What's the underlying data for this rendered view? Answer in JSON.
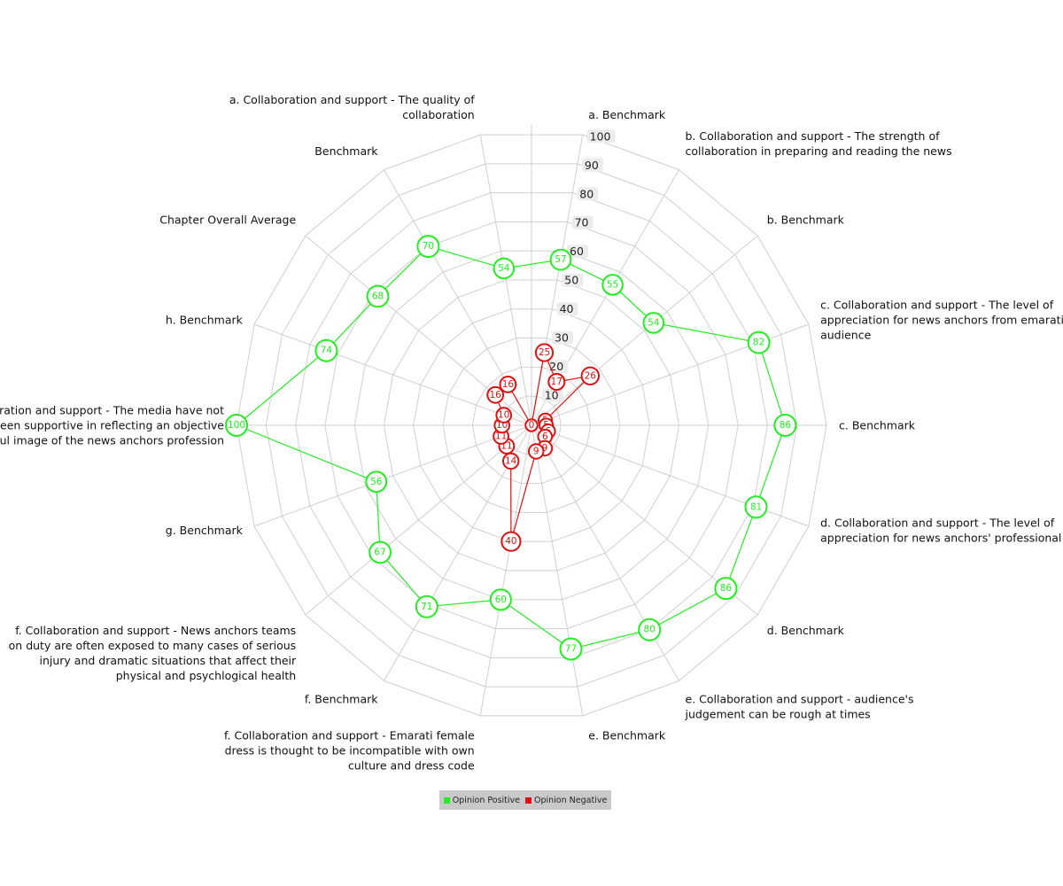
{
  "chart_data": {
    "type": "radar",
    "axes": [
      [
        "a. Benchmark"
      ],
      [
        "b. Collaboration and support - The strength of",
        "collaboration in preparing and reading the news"
      ],
      [
        "b. Benchmark"
      ],
      [
        "c. Collaboration and support - The level of",
        "appreciation for news anchors from emarati",
        "audience"
      ],
      [
        "c. Benchmark"
      ],
      [
        "d. Collaboration and support - The level of",
        "appreciation for news anchors' professional skills"
      ],
      [
        "d. Benchmark"
      ],
      [
        "e. Collaboration and support - audience's",
        "judgement can be rough at times"
      ],
      [
        "e. Benchmark"
      ],
      [
        "f. Collaboration and support - Emarati female",
        "dress is thought to be incompatible with own",
        "culture and dress code"
      ],
      [
        "f. Benchmark"
      ],
      [
        "f. Collaboration and support - News anchors teams",
        "on duty are often exposed to many cases of serious",
        "injury and dramatic situations that affect their",
        "physical and psychlogical health"
      ],
      [
        "g. Benchmark"
      ],
      [
        "g. Collaboration and support - The media have not",
        "been supportive in reflecting an objective",
        "and respectful image of the news anchors profession"
      ],
      [
        "h. Benchmark"
      ],
      [
        "Chapter Overall Average"
      ],
      [
        "Benchmark"
      ],
      [
        "a. Collaboration and support - The quality of",
        "collaboration"
      ]
    ],
    "radial_ticks": [
      10,
      20,
      30,
      40,
      50,
      60,
      70,
      80,
      90,
      100
    ],
    "rmax": 100,
    "series": [
      {
        "name": "Opinion Positive",
        "color": "#22ee22",
        "values": [
          57,
          55,
          54,
          82,
          86,
          81,
          86,
          80,
          77,
          60,
          71,
          67,
          56,
          100,
          74,
          68,
          70,
          54
        ]
      },
      {
        "name": "Opinion Negative",
        "color": "#dd1111",
        "values": [
          25,
          17,
          26,
          5,
          5,
          6,
          6,
          9,
          9,
          40,
          14,
          11,
          11,
          10,
          10,
          16,
          16,
          0
        ]
      }
    ],
    "legend_position": "bottom"
  }
}
